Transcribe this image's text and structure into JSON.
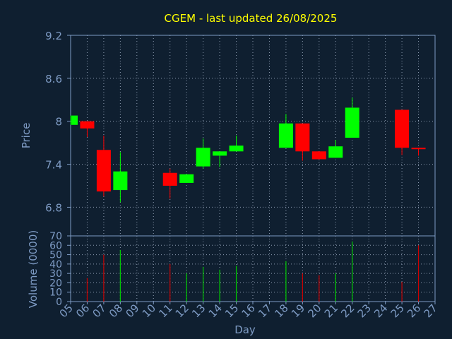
{
  "chart_data": [
    {
      "type": "candlestick",
      "title": "CGEM - last updated 26/08/2025",
      "ylabel": "Price",
      "xlabel": "",
      "ylim": [
        6.4,
        9.2
      ],
      "yticks": [
        "9.2",
        "8.6",
        "8",
        "7.4",
        "6.8"
      ],
      "ytick_values": [
        9.2,
        8.6,
        8.0,
        7.4,
        6.8
      ],
      "grid": true,
      "candles": [
        {
          "day": 5,
          "open": 7.95,
          "close": 8.08,
          "high": 8.08,
          "low": 7.95
        },
        {
          "day": 6,
          "open": 8.0,
          "close": 7.9,
          "high": 8.0,
          "low": 7.78
        },
        {
          "day": 7,
          "open": 7.6,
          "close": 7.02,
          "high": 7.8,
          "low": 6.95
        },
        {
          "day": 8,
          "open": 7.04,
          "close": 7.3,
          "high": 7.57,
          "low": 6.87
        },
        {
          "day": 11,
          "open": 7.28,
          "close": 7.1,
          "high": 7.34,
          "low": 6.92
        },
        {
          "day": 12,
          "open": 7.14,
          "close": 7.26,
          "high": 7.26,
          "low": 7.14
        },
        {
          "day": 13,
          "open": 7.37,
          "close": 7.63,
          "high": 7.76,
          "low": 7.34
        },
        {
          "day": 14,
          "open": 7.52,
          "close": 7.58,
          "high": 7.58,
          "low": 7.36
        },
        {
          "day": 15,
          "open": 7.58,
          "close": 7.66,
          "high": 7.8,
          "low": 7.58
        },
        {
          "day": 18,
          "open": 7.63,
          "close": 7.97,
          "high": 8.1,
          "low": 7.63
        },
        {
          "day": 19,
          "open": 7.97,
          "close": 7.58,
          "high": 7.97,
          "low": 7.45
        },
        {
          "day": 20,
          "open": 7.58,
          "close": 7.47,
          "high": 7.58,
          "low": 7.47
        },
        {
          "day": 21,
          "open": 7.49,
          "close": 7.65,
          "high": 7.74,
          "low": 7.49
        },
        {
          "day": 22,
          "open": 7.77,
          "close": 8.19,
          "high": 8.33,
          "low": 7.77
        },
        {
          "day": 25,
          "open": 8.16,
          "close": 7.63,
          "high": 8.16,
          "low": 7.53
        },
        {
          "day": 26,
          "open": 7.63,
          "close": 7.62,
          "high": 7.63,
          "low": 7.52
        }
      ]
    },
    {
      "type": "bar",
      "title": "",
      "ylabel": "Volume (0000)",
      "xlabel": "Day",
      "ylim": [
        0,
        70
      ],
      "yticks": [
        "70",
        "60",
        "50",
        "40",
        "30",
        "20",
        "10",
        "0"
      ],
      "ytick_values": [
        70,
        60,
        50,
        40,
        30,
        20,
        10,
        0
      ],
      "categories": [
        "05",
        "06",
        "07",
        "08",
        "09",
        "10",
        "11",
        "12",
        "13",
        "14",
        "15",
        "16",
        "17",
        "18",
        "19",
        "20",
        "21",
        "22",
        "23",
        "24",
        "25",
        "26",
        "27"
      ],
      "bars": [
        {
          "day": 6,
          "value": 25,
          "direction": "down"
        },
        {
          "day": 7,
          "value": 50,
          "direction": "down"
        },
        {
          "day": 8,
          "value": 55,
          "direction": "up"
        },
        {
          "day": 11,
          "value": 40,
          "direction": "down"
        },
        {
          "day": 12,
          "value": 30,
          "direction": "up"
        },
        {
          "day": 13,
          "value": 37,
          "direction": "up"
        },
        {
          "day": 14,
          "value": 34,
          "direction": "up"
        },
        {
          "day": 15,
          "value": 38,
          "direction": "up"
        },
        {
          "day": 18,
          "value": 43,
          "direction": "up"
        },
        {
          "day": 19,
          "value": 30,
          "direction": "down"
        },
        {
          "day": 20,
          "value": 28,
          "direction": "down"
        },
        {
          "day": 21,
          "value": 30,
          "direction": "up"
        },
        {
          "day": 22,
          "value": 64,
          "direction": "up"
        },
        {
          "day": 25,
          "value": 21,
          "direction": "down"
        },
        {
          "day": 26,
          "value": 60,
          "direction": "down"
        }
      ]
    }
  ],
  "colors": {
    "background": "#0f1f30",
    "axis": "#7e9bc4",
    "grid": "#8c9bb0",
    "title": "#ffff00",
    "label": "#7e9bc4",
    "up": "#00ff00",
    "down": "#ff0000",
    "volume_up": "#00cc00",
    "volume_down": "#cc0000"
  }
}
